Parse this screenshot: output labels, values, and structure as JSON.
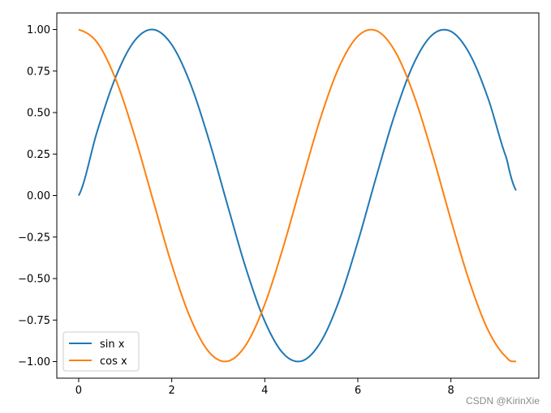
{
  "chart_data": {
    "type": "line",
    "title": "",
    "xlabel": "",
    "ylabel": "",
    "xlim": [
      -0.47,
      9.89
    ],
    "ylim": [
      -1.1,
      1.1
    ],
    "grid": false,
    "legend_position": "lower-left",
    "x_ticks": [
      0,
      2,
      4,
      6,
      8
    ],
    "x_tick_labels": [
      "0",
      "2",
      "4",
      "6",
      "8"
    ],
    "y_ticks": [
      -1.0,
      -0.75,
      -0.5,
      -0.25,
      0.0,
      0.25,
      0.5,
      0.75,
      1.0
    ],
    "y_tick_labels": [
      "−1.00",
      "−0.75",
      "−0.50",
      "−0.25",
      "0.00",
      "0.25",
      "0.50",
      "0.75",
      "1.00"
    ],
    "series": [
      {
        "name": "sin x",
        "color": "#1f77b4",
        "x": [
          0,
          0.4,
          0.8,
          1.2,
          1.6,
          2.0,
          2.4,
          2.8,
          3.2,
          3.6,
          4.0,
          4.4,
          4.8,
          5.2,
          5.6,
          6.0,
          6.4,
          6.8,
          7.2,
          7.6,
          8.0,
          8.4,
          8.8,
          9.2,
          9.4
        ],
        "y": [
          0.0,
          0.389,
          0.717,
          0.932,
          1.0,
          0.909,
          0.675,
          0.335,
          -0.058,
          -0.443,
          -0.757,
          -0.952,
          -0.996,
          -0.883,
          -0.631,
          -0.279,
          0.117,
          0.494,
          0.794,
          0.968,
          0.989,
          0.855,
          0.585,
          0.223,
          0.031
        ]
      },
      {
        "name": "cos x",
        "color": "#ff7f0e",
        "x": [
          0,
          0.4,
          0.8,
          1.2,
          1.6,
          2.0,
          2.4,
          2.8,
          3.2,
          3.6,
          4.0,
          4.4,
          4.8,
          5.2,
          5.6,
          6.0,
          6.4,
          6.8,
          7.2,
          7.6,
          8.0,
          8.4,
          8.8,
          9.2,
          9.4
        ],
        "y": [
          1.0,
          0.921,
          0.697,
          0.362,
          -0.029,
          -0.416,
          -0.737,
          -0.942,
          -0.998,
          -0.897,
          -0.654,
          -0.307,
          0.087,
          0.469,
          0.776,
          0.96,
          0.993,
          0.869,
          0.608,
          0.251,
          -0.146,
          -0.519,
          -0.811,
          -0.975,
          -1.0
        ]
      }
    ]
  },
  "watermark": "CSDN @KirinXie"
}
